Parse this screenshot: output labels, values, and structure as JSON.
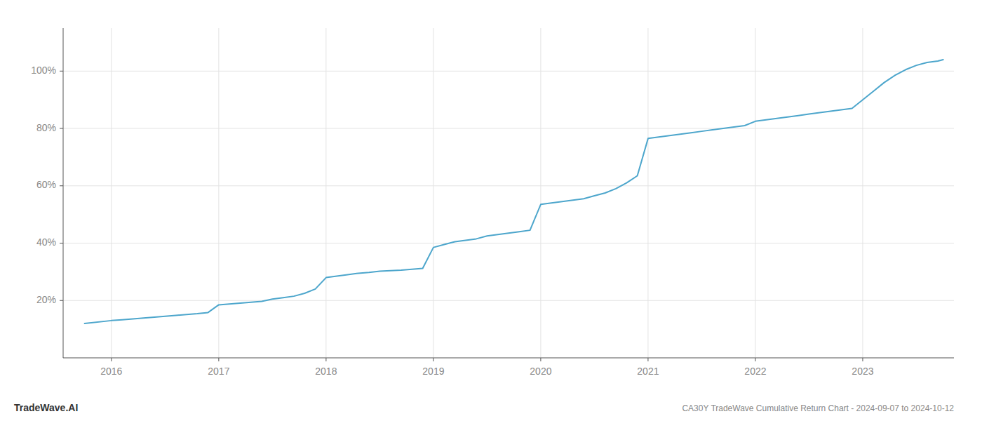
{
  "chart_data": {
    "type": "line",
    "title": "CA30Y TradeWave Cumulative Return Chart - 2024-09-07 to 2024-10-12",
    "annotations": [
      "TradeWave.AI"
    ],
    "color": "#4da6cc",
    "x": [
      2015.75,
      2016.0,
      2016.1,
      2016.2,
      2016.3,
      2016.4,
      2016.5,
      2016.6,
      2016.7,
      2016.8,
      2016.9,
      2017.0,
      2017.1,
      2017.2,
      2017.3,
      2017.4,
      2017.5,
      2017.6,
      2017.7,
      2017.8,
      2017.9,
      2018.0,
      2018.1,
      2018.2,
      2018.3,
      2018.4,
      2018.5,
      2018.6,
      2018.7,
      2018.8,
      2018.9,
      2019.0,
      2019.1,
      2019.2,
      2019.3,
      2019.4,
      2019.5,
      2019.6,
      2019.7,
      2019.8,
      2019.9,
      2020.0,
      2020.1,
      2020.2,
      2020.3,
      2020.4,
      2020.5,
      2020.6,
      2020.7,
      2020.8,
      2020.9,
      2021.0,
      2021.1,
      2021.2,
      2021.3,
      2021.4,
      2021.5,
      2021.6,
      2021.7,
      2021.8,
      2021.9,
      2022.0,
      2022.1,
      2022.2,
      2022.3,
      2022.4,
      2022.5,
      2022.6,
      2022.7,
      2022.8,
      2022.9,
      2023.0,
      2023.1,
      2023.2,
      2023.3,
      2023.4,
      2023.5,
      2023.6,
      2023.7,
      2023.75
    ],
    "values": [
      12.0,
      13.0,
      13.3,
      13.6,
      13.9,
      14.2,
      14.5,
      14.8,
      15.1,
      15.4,
      15.8,
      18.5,
      18.8,
      19.1,
      19.4,
      19.7,
      20.5,
      21.0,
      21.5,
      22.5,
      24.0,
      28.0,
      28.5,
      29.0,
      29.5,
      29.8,
      30.2,
      30.4,
      30.6,
      30.9,
      31.2,
      38.5,
      39.5,
      40.5,
      41.0,
      41.5,
      42.5,
      43.0,
      43.5,
      44.0,
      44.5,
      53.5,
      54.0,
      54.5,
      55.0,
      55.5,
      56.5,
      57.5,
      59.0,
      61.0,
      63.5,
      76.5,
      77.0,
      77.5,
      78.0,
      78.5,
      79.0,
      79.5,
      80.0,
      80.5,
      81.0,
      82.5,
      83.0,
      83.5,
      84.0,
      84.5,
      85.0,
      85.5,
      86.0,
      86.5,
      87.0,
      90.0,
      93.0,
      96.0,
      98.5,
      100.5,
      102.0,
      103.0,
      103.5,
      104.0
    ],
    "xlim": [
      2015.55,
      2023.85
    ],
    "ylim": [
      0,
      115
    ],
    "xticks": [
      2016,
      2017,
      2018,
      2019,
      2020,
      2021,
      2022,
      2023
    ],
    "yticks": [
      {
        "value": 20,
        "label": "20%"
      },
      {
        "value": 40,
        "label": "40%"
      },
      {
        "value": 60,
        "label": "60%"
      },
      {
        "value": 80,
        "label": "80%"
      },
      {
        "value": 100,
        "label": "100%"
      }
    ],
    "grid": true
  }
}
